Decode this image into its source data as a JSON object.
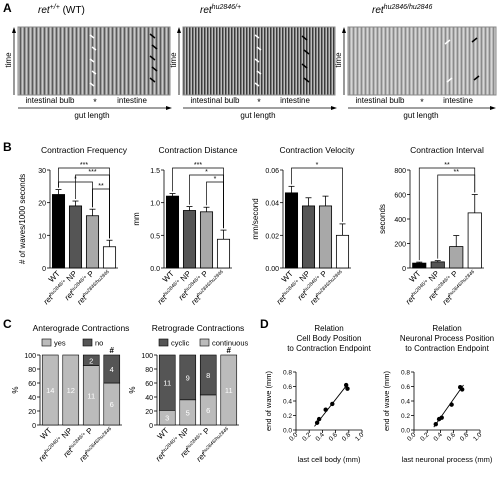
{
  "panel_labels": {
    "A": "A",
    "B": "B",
    "C": "C",
    "D": "D"
  },
  "panel_A": {
    "kymographs": [
      {
        "title_base": "ret",
        "title_sup": "+/+",
        "title_suffix": " (WT)"
      },
      {
        "title_base": "ret",
        "title_sup": "hu2846/+",
        "title_suffix": ""
      },
      {
        "title_base": "ret",
        "title_sup": "hu2846/hu2846",
        "title_suffix": ""
      }
    ],
    "time_label": "time",
    "bulb_label": "intestinal bulb",
    "star_label": "*",
    "intestine_label": "intestine",
    "gut_length_label": "gut length"
  },
  "colors": {
    "wt": "#000000",
    "np": "#555555",
    "p": "#a8a8a8",
    "homo": "#ffffff",
    "dark": "#555555",
    "light": "#bbbbbb"
  },
  "chart_data": [
    {
      "type": "bar",
      "title": "Contraction Frequency",
      "ylabel": "# of waves/1000 seconds",
      "ylim": [
        0,
        30
      ],
      "yticks": [
        0,
        10,
        20,
        30
      ],
      "categories": [
        "WT",
        "ret hu2846/+ NP",
        "ret hu2846/+ P",
        "ret hu2846/hu2846"
      ],
      "values": [
        22.5,
        19,
        16,
        6.5
      ],
      "errors": [
        1.5,
        1.5,
        2,
        2
      ],
      "significance": [
        {
          "from": 0,
          "to": 3,
          "label": "***"
        },
        {
          "from": 1,
          "to": 3,
          "label": "***"
        },
        {
          "from": 0,
          "to": 2,
          "label": "*"
        },
        {
          "from": 2,
          "to": 3,
          "label": "**"
        }
      ]
    },
    {
      "type": "bar",
      "title": "Contraction Distance",
      "ylabel": "mm",
      "ylim": [
        0,
        1.5
      ],
      "yticks": [
        0,
        0.5,
        1.0,
        1.5
      ],
      "categories": [
        "WT",
        "ret hu2846/+ NP",
        "ret hu2846/+ P",
        "ret hu2846/hu2846"
      ],
      "values": [
        1.1,
        0.88,
        0.86,
        0.44
      ],
      "errors": [
        0.04,
        0.06,
        0.07,
        0.14
      ],
      "significance": [
        {
          "from": 0,
          "to": 3,
          "label": "***"
        },
        {
          "from": 1,
          "to": 3,
          "label": "*"
        },
        {
          "from": 2,
          "to": 3,
          "label": "*"
        }
      ]
    },
    {
      "type": "bar",
      "title": "Contraction Velocity",
      "ylabel": "mm/second",
      "ylim": [
        0,
        0.06
      ],
      "yticks": [
        0.0,
        0.02,
        0.04,
        0.06
      ],
      "categories": [
        "WT",
        "ret hu2846/+ NP",
        "ret hu2846/+ P",
        "ret hu2846/hu2846"
      ],
      "values": [
        0.046,
        0.038,
        0.038,
        0.02
      ],
      "errors": [
        0.004,
        0.005,
        0.006,
        0.007
      ],
      "significance": [
        {
          "from": 0,
          "to": 3,
          "label": "*"
        }
      ]
    },
    {
      "type": "bar",
      "title": "Contraction Interval",
      "ylabel": "seconds",
      "ylim": [
        0,
        800
      ],
      "yticks": [
        0,
        200,
        400,
        600,
        800
      ],
      "categories": [
        "WT",
        "ret hu2846/+ NP",
        "ret hu2846/+ P",
        "ret hu2846/hu2846"
      ],
      "values": [
        40,
        50,
        175,
        450
      ],
      "errors": [
        8,
        10,
        90,
        150
      ],
      "significance": [
        {
          "from": 0,
          "to": 3,
          "label": "**"
        },
        {
          "from": 1,
          "to": 3,
          "label": "**"
        }
      ]
    },
    {
      "type": "bar",
      "stacked": true,
      "title": "Anterograde Contractions",
      "ylabel": "%",
      "ylim": [
        0,
        100
      ],
      "yticks": [
        0,
        20,
        40,
        60,
        80,
        100
      ],
      "categories": [
        "WT",
        "ret hu2846/+ NP",
        "ret hu2846/+ P",
        "ret hu2846/hu2846"
      ],
      "series": [
        {
          "name": "yes",
          "values": [
            100,
            100,
            85,
            60
          ],
          "counts": [
            "14",
            "12",
            "11",
            "6"
          ]
        },
        {
          "name": "no",
          "values": [
            0,
            0,
            15,
            40
          ],
          "counts": [
            "",
            "",
            "2",
            "4"
          ]
        }
      ],
      "marks": [
        "",
        "",
        "",
        "#"
      ]
    },
    {
      "type": "bar",
      "stacked": true,
      "title": "Retrograde Contractions",
      "ylabel": "%",
      "ylim": [
        0,
        100
      ],
      "yticks": [
        0,
        20,
        40,
        60,
        80,
        100
      ],
      "categories": [
        "WT",
        "ret hu2846/+ NP",
        "ret hu2846/+ P",
        "ret hu2846/hu2846"
      ],
      "series": [
        {
          "name": "continuous",
          "values": [
            21,
            36,
            43,
            100
          ],
          "counts": [
            "3",
            "5",
            "6",
            "11"
          ]
        },
        {
          "name": "cyclic",
          "values": [
            79,
            64,
            57,
            0
          ],
          "counts": [
            "11",
            "9",
            "8",
            ""
          ]
        }
      ],
      "marks": [
        "",
        "",
        "",
        "#"
      ]
    },
    {
      "type": "scatter",
      "title_lines": [
        "Relation",
        "Cell Body Position",
        "to Contraction Endpoint"
      ],
      "xlabel": "last cell body (mm)",
      "ylabel": "end of wave (mm)",
      "xlim": [
        0,
        1.0
      ],
      "ylim": [
        0,
        0.8
      ],
      "xticks": [
        0.0,
        0.2,
        0.4,
        0.6,
        0.8,
        1.0
      ],
      "yticks": [
        0.0,
        0.2,
        0.4,
        0.6,
        0.8
      ],
      "x": [
        0.32,
        0.35,
        0.45,
        0.55,
        0.76,
        0.78
      ],
      "y": [
        0.1,
        0.15,
        0.28,
        0.36,
        0.62,
        0.57
      ],
      "fit": [
        [
          0.28,
          0.05
        ],
        [
          0.78,
          0.63
        ]
      ]
    },
    {
      "type": "scatter",
      "title_lines": [
        "Relation",
        "Neuronal Process Position",
        "to Contraction Endpoint"
      ],
      "xlabel": "last neuronal process (mm)",
      "ylabel": "end of wave (mm)",
      "xlim": [
        0,
        1.0
      ],
      "ylim": [
        0,
        0.8
      ],
      "xticks": [
        0.0,
        0.2,
        0.4,
        0.6,
        0.8,
        1.0
      ],
      "yticks": [
        0.0,
        0.2,
        0.4,
        0.6,
        0.8
      ],
      "x": [
        0.33,
        0.38,
        0.42,
        0.57,
        0.7,
        0.73
      ],
      "y": [
        0.08,
        0.15,
        0.17,
        0.35,
        0.59,
        0.56
      ],
      "fit": [
        [
          0.3,
          0.04
        ],
        [
          0.75,
          0.62
        ]
      ]
    }
  ]
}
